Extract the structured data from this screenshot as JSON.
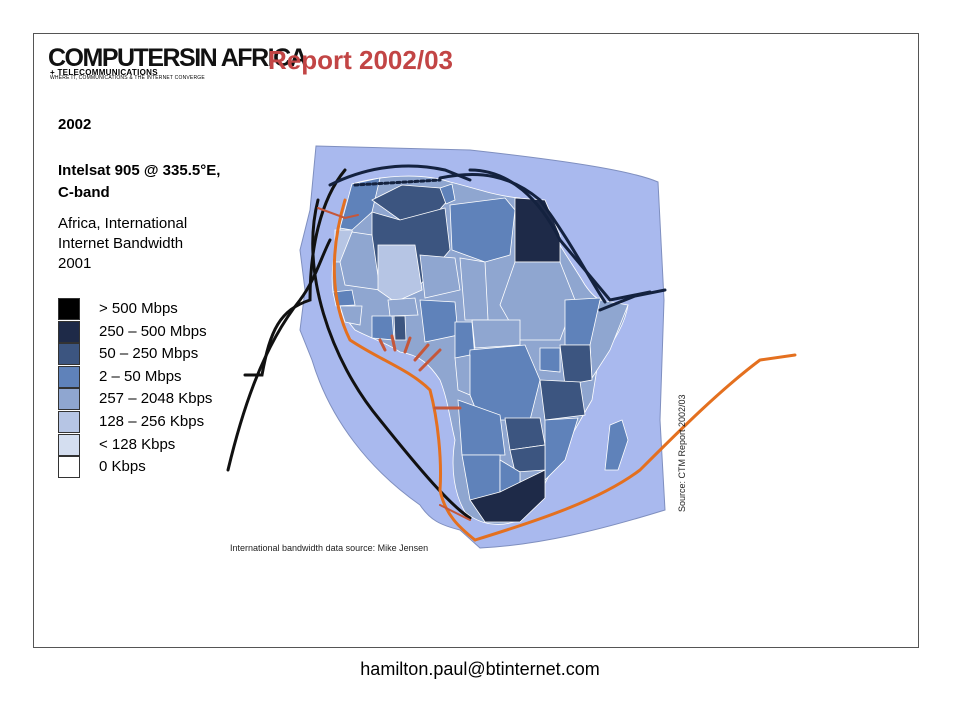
{
  "header": {
    "logo": {
      "word1": "COMPUTERS",
      "word2": "IN AFRICA",
      "sub1": "+ TELECOMMUNICATIONS",
      "sub2": "WHERE IT, COMMUNICATIONS & THE INTERNET CONVERGE"
    },
    "report_title": "Report 2002/03"
  },
  "panel": {
    "year": "2002",
    "satellite_line1": "Intelsat 905 @ 335.5°E,",
    "satellite_line2": "C-band",
    "subtitle_line1": "Africa, International",
    "subtitle_line2": "Internet Bandwidth",
    "subtitle_line3": "2001"
  },
  "legend": [
    {
      "label": "> 500 Mbps",
      "color": "#000000"
    },
    {
      "label": "250 – 500 Mbps",
      "color": "#1e2a48"
    },
    {
      "label": "50 – 250 Mbps",
      "color": "#3c5580"
    },
    {
      "label": "2 – 50 Mbps",
      "color": "#5f82ba"
    },
    {
      "label": "257 – 2048 Kbps",
      "color": "#8fa6d0"
    },
    {
      "label": "128 – 256 Kbps",
      "color": "#b6c5e4"
    },
    {
      "label": "< 128 Kbps",
      "color": "#d4def0"
    },
    {
      "label": "0 Kbps",
      "color": "#ffffff"
    }
  ],
  "map": {
    "footprint_color": "#a9b9ee",
    "cable_black": "#111111",
    "cable_navy": "#14223f",
    "cable_orange": "#e4701f",
    "cable_rust": "#c5573a"
  },
  "sources": {
    "jensen": "International bandwidth data source: Mike Jensen",
    "ctm": "Source: CTM Report 2002/03"
  },
  "footer": {
    "email": "hamilton.paul@btinternet.com"
  }
}
